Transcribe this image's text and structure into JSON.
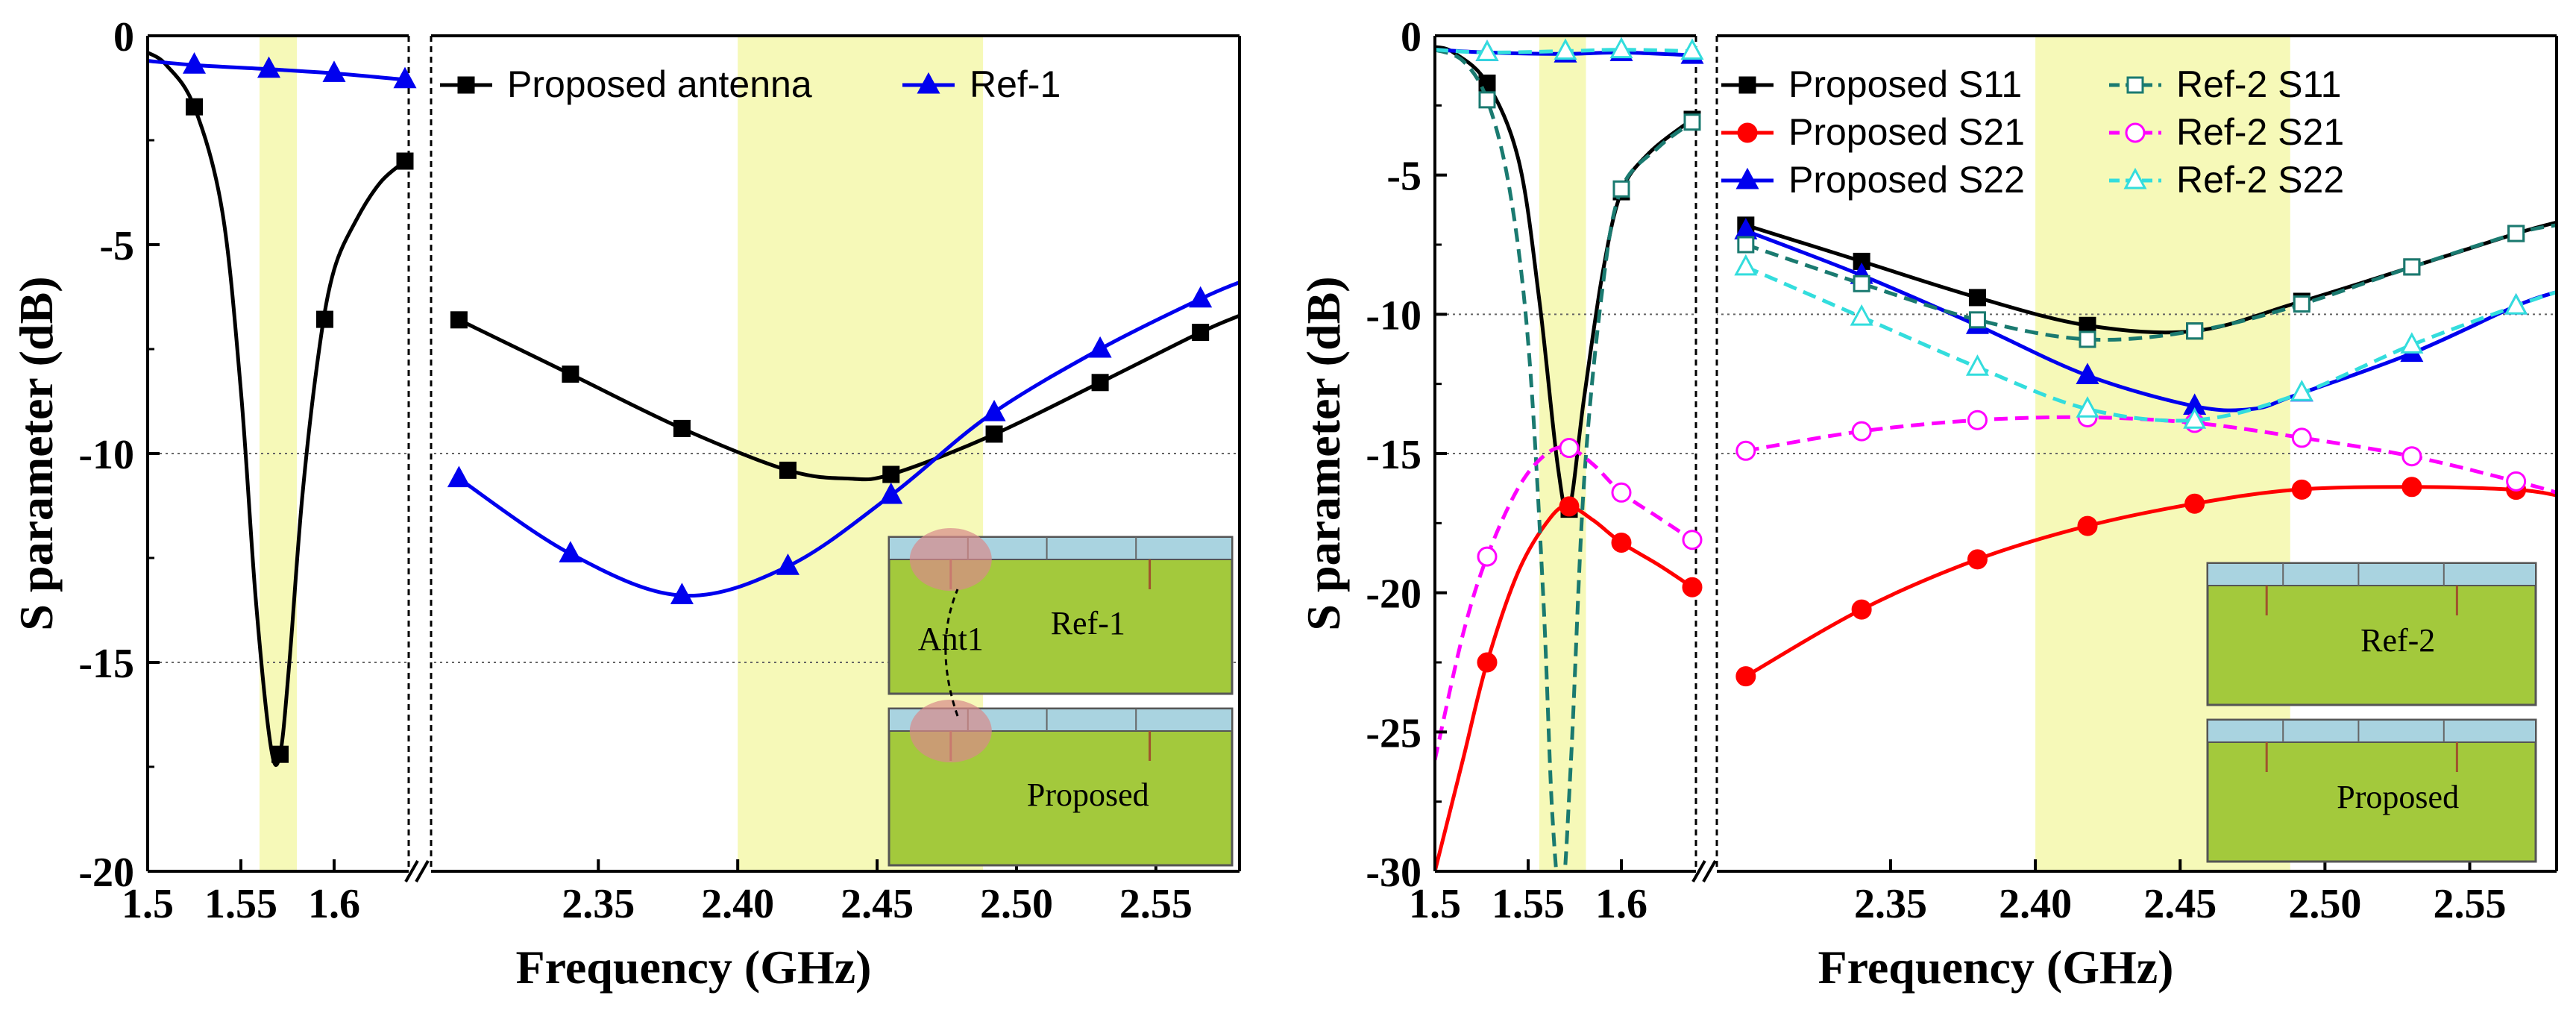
{
  "chart_data": [
    {
      "type": "line",
      "panel": "left",
      "ylabel": "S parameter (dB)",
      "xlabel": "Frequency (GHz)",
      "ylim": [
        -20,
        0
      ],
      "yticks": [
        "0",
        "-5",
        "-10",
        "-15",
        "-20"
      ],
      "xticks_seg1": [
        "1.5",
        "1.55",
        "1.6"
      ],
      "xticks_seg2": [
        "2.35",
        "2.40",
        "2.45",
        "2.50",
        "2.55"
      ],
      "seg1_range": [
        1.5,
        1.64
      ],
      "seg2_range": [
        2.29,
        2.58
      ],
      "ref_lines": [
        -10,
        -15
      ],
      "highlight_bands": [
        [
          1.56,
          1.58
        ],
        [
          2.4,
          2.488
        ]
      ],
      "series": [
        {
          "name": "Proposed antenna",
          "color": "#000000",
          "marker": "square",
          "seg1": {
            "x": [
              1.5,
              1.51,
              1.525,
              1.54,
              1.55,
              1.558,
              1.566,
              1.571,
              1.576,
              1.583,
              1.592,
              1.6,
              1.612,
              1.625,
              1.638
            ],
            "y": [
              -0.4,
              -0.7,
              -1.7,
              -4.2,
              -8.5,
              -13.5,
              -17.0,
              -17.2,
              -15.0,
              -11.0,
              -7.5,
              -5.6,
              -4.4,
              -3.5,
              -3.0
            ]
          },
          "seg2": {
            "x": [
              2.3,
              2.34,
              2.38,
              2.418,
              2.44,
              2.455,
              2.49,
              2.53,
              2.566,
              2.58
            ],
            "y": [
              -6.8,
              -8.1,
              -9.4,
              -10.4,
              -10.6,
              -10.5,
              -9.6,
              -8.3,
              -7.1,
              -6.7
            ]
          },
          "markers_seg1": [
            1.525,
            1.571,
            1.595,
            1.638
          ],
          "markers_seg2": [
            2.3,
            2.34,
            2.38,
            2.418,
            2.455,
            2.492,
            2.53,
            2.566
          ]
        },
        {
          "name": "Ref-1",
          "color": "#0000ee",
          "marker": "triangle",
          "seg1": {
            "x": [
              1.5,
              1.525,
              1.565,
              1.6,
              1.638
            ],
            "y": [
              -0.6,
              -0.7,
              -0.8,
              -0.9,
              -1.05
            ]
          },
          "seg2": {
            "x": [
              2.3,
              2.34,
              2.38,
              2.418,
              2.455,
              2.49,
              2.53,
              2.566,
              2.58
            ],
            "y": [
              -10.6,
              -12.4,
              -13.4,
              -12.7,
              -11.0,
              -9.1,
              -7.5,
              -6.3,
              -5.9
            ]
          },
          "markers_seg1": [
            1.525,
            1.565,
            1.6,
            1.638
          ],
          "markers_seg2": [
            2.3,
            2.34,
            2.38,
            2.418,
            2.455,
            2.492,
            2.53,
            2.566
          ]
        }
      ],
      "inset": {
        "top_label": "Ref-1",
        "bottom_label": "Proposed",
        "arrow_label": "Ant1"
      }
    },
    {
      "type": "line",
      "panel": "right",
      "ylabel": "S parameter (dB)",
      "xlabel": "Frequency (GHz)",
      "ylim": [
        -30,
        0
      ],
      "yticks": [
        "0",
        "-5",
        "-10",
        "-15",
        "-20",
        "-25",
        "-30"
      ],
      "xticks_seg1": [
        "1.5",
        "1.55",
        "1.6"
      ],
      "xticks_seg2": [
        "2.35",
        "2.40",
        "2.45",
        "2.50",
        "2.55"
      ],
      "seg1_range": [
        1.5,
        1.64
      ],
      "seg2_range": [
        2.29,
        2.58
      ],
      "ref_lines": [
        -10,
        -15
      ],
      "highlight_bands": [
        [
          1.556,
          1.581
        ],
        [
          2.4,
          2.488
        ]
      ],
      "series": [
        {
          "name": "Proposed S11",
          "color": "#000000",
          "marker": "square",
          "filled": true,
          "dashed": false,
          "seg1": {
            "x": [
              1.5,
              1.51,
              1.528,
              1.545,
              1.556,
              1.566,
              1.572,
              1.58,
              1.59,
              1.6,
              1.615,
              1.638
            ],
            "y": [
              -0.4,
              -0.6,
              -1.7,
              -4.5,
              -9.5,
              -15.5,
              -17.0,
              -13.0,
              -8.5,
              -5.6,
              -4.2,
              -3.0
            ]
          },
          "seg2": {
            "x": [
              2.3,
              2.34,
              2.38,
              2.418,
              2.455,
              2.49,
              2.53,
              2.566,
              2.58
            ],
            "y": [
              -6.8,
              -8.1,
              -9.4,
              -10.4,
              -10.6,
              -9.6,
              -8.3,
              -7.1,
              -6.7
            ]
          },
          "markers_seg1": [
            1.528,
            1.572,
            1.6,
            1.638
          ],
          "markers_seg2": [
            2.3,
            2.34,
            2.38,
            2.418,
            2.455,
            2.492,
            2.53,
            2.566
          ]
        },
        {
          "name": "Proposed S21",
          "color": "#ff0000",
          "marker": "circle",
          "filled": true,
          "dashed": false,
          "seg1": {
            "x": [
              1.5,
              1.515,
              1.528,
              1.545,
              1.562,
              1.572,
              1.585,
              1.6,
              1.62,
              1.638
            ],
            "y": [
              -30.0,
              -26.0,
              -22.5,
              -19.2,
              -17.3,
              -16.9,
              -17.4,
              -18.2,
              -19.0,
              -19.8
            ]
          },
          "seg2": {
            "x": [
              2.3,
              2.34,
              2.38,
              2.418,
              2.455,
              2.49,
              2.53,
              2.566,
              2.58
            ],
            "y": [
              -23.0,
              -20.6,
              -18.8,
              -17.6,
              -16.8,
              -16.3,
              -16.2,
              -16.3,
              -16.5
            ]
          },
          "markers_seg1": [
            1.528,
            1.572,
            1.6,
            1.638
          ],
          "markers_seg2": [
            2.3,
            2.34,
            2.38,
            2.418,
            2.455,
            2.492,
            2.53,
            2.566
          ]
        },
        {
          "name": "Proposed S22",
          "color": "#0000ee",
          "marker": "triangle",
          "filled": true,
          "dashed": false,
          "seg1": {
            "x": [
              1.5,
              1.528,
              1.57,
              1.6,
              1.638
            ],
            "y": [
              -0.5,
              -0.6,
              -0.65,
              -0.6,
              -0.7
            ]
          },
          "seg2": {
            "x": [
              2.3,
              2.34,
              2.38,
              2.418,
              2.455,
              2.475,
              2.49,
              2.53,
              2.566,
              2.58
            ],
            "y": [
              -7.0,
              -8.6,
              -10.4,
              -12.2,
              -13.3,
              -13.4,
              -12.9,
              -11.4,
              -9.7,
              -9.2
            ]
          },
          "markers_seg1": [
            1.528,
            1.57,
            1.6,
            1.638
          ],
          "markers_seg2": [
            2.3,
            2.34,
            2.38,
            2.418,
            2.455,
            2.492,
            2.53,
            2.566
          ]
        },
        {
          "name": "Ref-2 S11",
          "color": "#1a7a70",
          "marker": "square",
          "filled": false,
          "dashed": true,
          "seg1": {
            "x": [
              1.5,
              1.515,
              1.528,
              1.54,
              1.55,
              1.558,
              1.563,
              1.568,
              1.573,
              1.58,
              1.59,
              1.6,
              1.62,
              1.638
            ],
            "y": [
              -0.5,
              -0.9,
              -2.3,
              -5.5,
              -11.0,
              -20.0,
              -28.0,
              -31.0,
              -26.0,
              -16.0,
              -9.0,
              -5.5,
              -4.0,
              -3.1
            ]
          },
          "seg2": {
            "x": [
              2.3,
              2.34,
              2.38,
              2.418,
              2.455,
              2.49,
              2.53,
              2.566,
              2.58
            ],
            "y": [
              -7.5,
              -8.9,
              -10.2,
              -10.9,
              -10.6,
              -9.7,
              -8.3,
              -7.1,
              -6.8
            ]
          },
          "markers_seg1": [
            1.528,
            1.6,
            1.638
          ],
          "markers_seg2": [
            2.3,
            2.34,
            2.38,
            2.418,
            2.455,
            2.492,
            2.53,
            2.566
          ]
        },
        {
          "name": "Ref-2 S21",
          "color": "#ff00ff",
          "marker": "circle",
          "filled": false,
          "dashed": true,
          "seg1": {
            "x": [
              1.5,
              1.515,
              1.528,
              1.545,
              1.56,
              1.572,
              1.585,
              1.6,
              1.62,
              1.638
            ],
            "y": [
              -26.0,
              -21.5,
              -18.7,
              -16.2,
              -15.0,
              -14.8,
              -15.4,
              -16.4,
              -17.3,
              -18.1
            ]
          },
          "seg2": {
            "x": [
              2.3,
              2.34,
              2.38,
              2.418,
              2.455,
              2.49,
              2.53,
              2.566,
              2.58
            ],
            "y": [
              -14.9,
              -14.2,
              -13.8,
              -13.7,
              -13.9,
              -14.4,
              -15.1,
              -16.0,
              -16.4
            ]
          },
          "markers_seg1": [
            1.528,
            1.572,
            1.6,
            1.638
          ],
          "markers_seg2": [
            2.3,
            2.34,
            2.38,
            2.418,
            2.455,
            2.492,
            2.53,
            2.566
          ]
        },
        {
          "name": "Ref-2 S22",
          "color": "#33dddd",
          "marker": "triangle",
          "filled": false,
          "dashed": true,
          "seg1": {
            "x": [
              1.5,
              1.528,
              1.57,
              1.6,
              1.638
            ],
            "y": [
              -0.5,
              -0.6,
              -0.55,
              -0.5,
              -0.55
            ]
          },
          "seg2": {
            "x": [
              2.3,
              2.34,
              2.38,
              2.418,
              2.455,
              2.49,
              2.53,
              2.566,
              2.58
            ],
            "y": [
              -8.3,
              -10.1,
              -11.9,
              -13.4,
              -13.8,
              -12.9,
              -11.1,
              -9.7,
              -9.2
            ]
          },
          "markers_seg1": [
            1.528,
            1.57,
            1.6,
            1.638
          ],
          "markers_seg2": [
            2.3,
            2.34,
            2.38,
            2.418,
            2.455,
            2.492,
            2.53,
            2.566
          ]
        }
      ],
      "inset": {
        "top_label": "Ref-2",
        "bottom_label": "Proposed"
      }
    }
  ]
}
